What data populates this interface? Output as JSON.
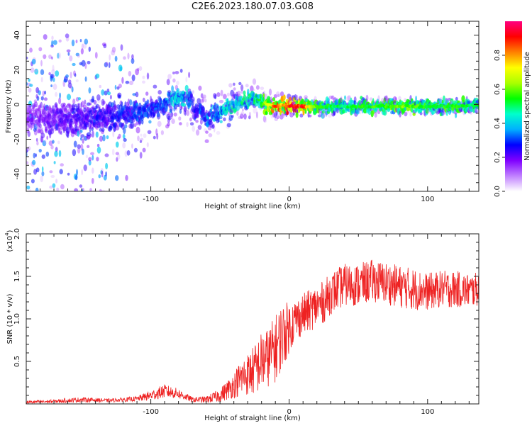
{
  "title": "C2E6.2023.180.07.03.G08",
  "chart_data": [
    {
      "type": "heatmap",
      "xlabel": "Height of straight line (km)",
      "ylabel": "Frequency (Hz)",
      "xlim": [
        -190,
        137
      ],
      "ylim": [
        -50,
        48
      ],
      "xticks": [
        -100,
        0,
        100
      ],
      "yticks": [
        -40,
        -20,
        0,
        20,
        40
      ],
      "colorbar": {
        "label": "Normalized spectral amplitude",
        "range": [
          0,
          1
        ],
        "ticks": [
          0.0,
          0.2,
          0.4,
          0.6,
          0.8
        ],
        "colormap": [
          "#ffffff",
          "#c080ff",
          "#8000ff",
          "#0000ff",
          "#00b0ff",
          "#00ffcc",
          "#00ff00",
          "#aaff00",
          "#ffff00",
          "#ff8000",
          "#ff0000",
          "#ff0080"
        ]
      },
      "ridge": {
        "x": [
          -190,
          -160,
          -130,
          -110,
          -95,
          -85,
          -75,
          -70,
          -68,
          -65,
          -60,
          -55,
          -45,
          -35,
          -25,
          -20,
          -15,
          -10,
          -5,
          0,
          5,
          10,
          20,
          40,
          60,
          80,
          100,
          120,
          137
        ],
        "y": [
          -8,
          -8,
          -7,
          -5,
          -2,
          3,
          4,
          3,
          -6,
          -2,
          -9,
          -7,
          -2,
          2,
          3,
          1,
          0,
          -1,
          0,
          -1,
          -1,
          -1,
          -1,
          -1,
          -1,
          -1,
          -1,
          -1,
          0
        ],
        "peak_amplitude": [
          0.2,
          0.25,
          0.3,
          0.35,
          0.35,
          0.45,
          0.45,
          0.4,
          0.3,
          0.35,
          0.4,
          0.4,
          0.5,
          0.5,
          0.55,
          0.6,
          0.75,
          0.9,
          0.85,
          1.0,
          0.95,
          0.95,
          0.6,
          0.55,
          0.6,
          0.65,
          0.6,
          0.6,
          0.55
        ]
      },
      "noise_spread_hz": {
        "x": [
          -190,
          -150,
          -120,
          -100,
          -60,
          -20,
          0,
          50,
          137
        ],
        "spread": [
          48,
          48,
          40,
          18,
          14,
          10,
          6,
          5,
          4
        ]
      }
    },
    {
      "type": "line",
      "xlabel": "Height of straight line (km)",
      "ylabel": "SNR (10 * v/v)",
      "yscale_label": "(x10",
      "yscale_exp": "4",
      "xlim": [
        -190,
        137
      ],
      "ylim": [
        0,
        2.0
      ],
      "xticks": [
        -100,
        0,
        100
      ],
      "yticks": [
        0.5,
        1.0,
        1.5,
        2.0
      ],
      "series": [
        {
          "color": "#ee2222",
          "x": [
            -190,
            -170,
            -150,
            -130,
            -110,
            -100,
            -90,
            -80,
            -70,
            -60,
            -50,
            -40,
            -35,
            -30,
            -25,
            -20,
            -15,
            -10,
            -5,
            0,
            5,
            10,
            15,
            20,
            25,
            30,
            40,
            50,
            60,
            70,
            80,
            90,
            100,
            110,
            120,
            130,
            137
          ],
          "values": [
            0.02,
            0.03,
            0.05,
            0.04,
            0.06,
            0.1,
            0.15,
            0.12,
            0.05,
            0.05,
            0.1,
            0.22,
            0.3,
            0.35,
            0.4,
            0.5,
            0.55,
            0.65,
            0.8,
            0.9,
            1.0,
            1.05,
            1.1,
            1.15,
            1.2,
            1.3,
            1.4,
            1.4,
            1.45,
            1.42,
            1.38,
            1.35,
            1.32,
            1.35,
            1.35,
            1.33,
            1.35
          ],
          "noise": [
            0.02,
            0.02,
            0.03,
            0.02,
            0.03,
            0.06,
            0.08,
            0.06,
            0.03,
            0.04,
            0.08,
            0.15,
            0.22,
            0.25,
            0.3,
            0.35,
            0.35,
            0.4,
            0.4,
            0.3,
            0.25,
            0.25,
            0.25,
            0.25,
            0.25,
            0.25,
            0.25,
            0.25,
            0.25,
            0.25,
            0.25,
            0.25,
            0.22,
            0.22,
            0.22,
            0.2,
            0.2
          ]
        }
      ]
    }
  ]
}
